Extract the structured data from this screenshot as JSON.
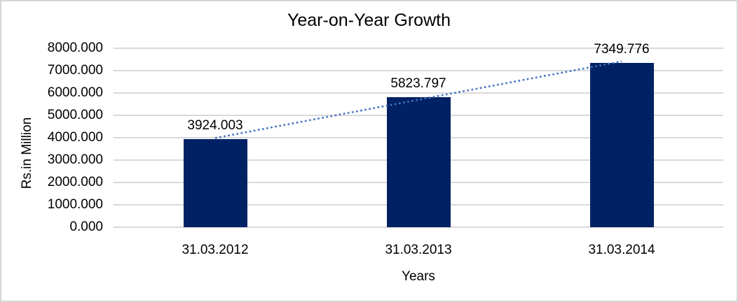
{
  "chart_data": {
    "type": "bar",
    "title": "Year-on-Year Growth",
    "xlabel": "Years",
    "ylabel": "Rs.in Million",
    "categories": [
      "31.03.2012",
      "31.03.2013",
      "31.03.2014"
    ],
    "values": [
      3924.003,
      5823.797,
      7349.776
    ],
    "data_labels": [
      "3924.003",
      "5823.797",
      "7349.776"
    ],
    "y_ticks": [
      "8000.000",
      "7000.000",
      "6000.000",
      "5000.000",
      "4000.000",
      "3000.000",
      "2000.000",
      "1000.000",
      "0.000"
    ],
    "ylim": [
      0,
      8000
    ],
    "grid": true,
    "legend_position": "none",
    "trendline": {
      "type": "linear",
      "style": "dotted"
    },
    "colors": {
      "bar": "#002264",
      "trendline": "#4472c4",
      "gridline": "#d9d9d9",
      "text": "#000000",
      "frame_border": "#d6d6d6",
      "background": "#ffffff"
    }
  }
}
